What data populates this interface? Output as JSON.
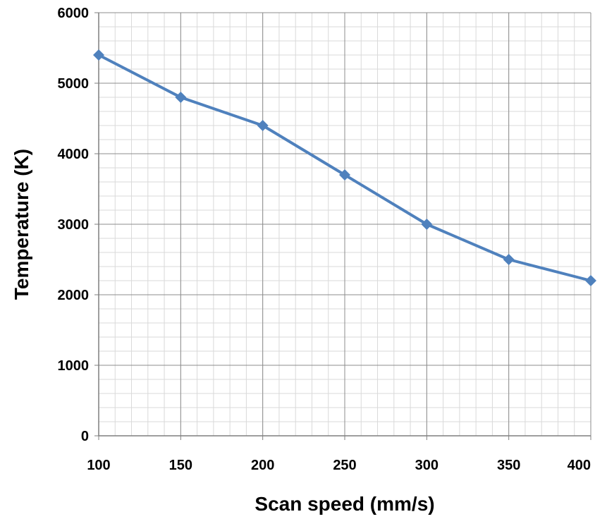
{
  "chart_data": {
    "type": "line",
    "title": "",
    "xlabel": "Scan speed (mm/s)",
    "ylabel": "Temperature (K)",
    "xlim": [
      100,
      400
    ],
    "ylim": [
      0,
      6000
    ],
    "x_ticks": [
      100,
      150,
      200,
      250,
      300,
      350,
      400
    ],
    "y_ticks": [
      0,
      1000,
      2000,
      3000,
      4000,
      5000,
      6000
    ],
    "grid": true,
    "minor_grid": true,
    "legend": "none",
    "series": [
      {
        "color": "#4f81bd",
        "marker": "diamond",
        "x": [
          100,
          150,
          200,
          250,
          300,
          350,
          400
        ],
        "y": [
          5400,
          4800,
          4400,
          3700,
          3000,
          2500,
          2200
        ]
      }
    ]
  }
}
